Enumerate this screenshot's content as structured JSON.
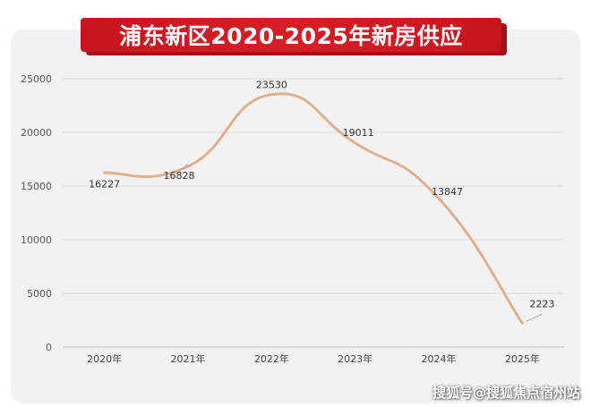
{
  "chart_data": {
    "type": "line",
    "title": "浦东新区2020-2025年新房供应",
    "categories": [
      "2020年",
      "2021年",
      "2022年",
      "2023年",
      "2024年",
      "2025年"
    ],
    "series": [
      {
        "values": [
          16227,
          16828,
          23530,
          19011,
          13847,
          2223
        ]
      }
    ],
    "data_labels": [
      "16227",
      "16828",
      "23530",
      "19011",
      "13847",
      "2223"
    ],
    "yticks": [
      "0",
      "5000",
      "10000",
      "15000",
      "20000",
      "25000"
    ],
    "ylim": [
      0,
      25000
    ],
    "grid": true,
    "line_color": "#e0b08e",
    "title_color": "#d81e25"
  },
  "watermark": "搜狐号@搜狐焦点宿州站"
}
